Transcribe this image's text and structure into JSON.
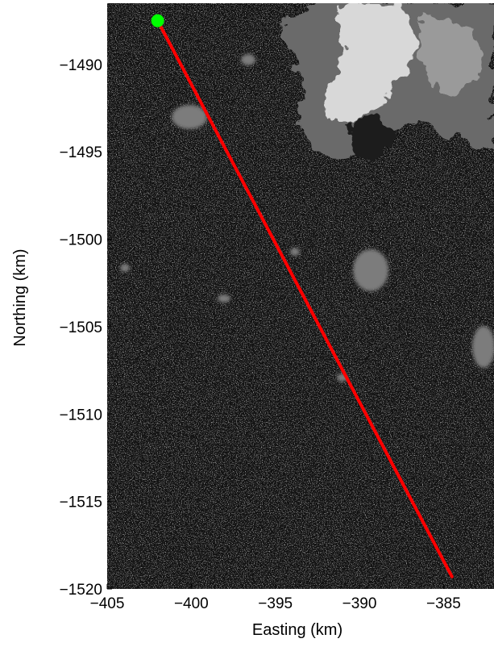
{
  "chart_data": {
    "type": "line",
    "xlabel": "Easting (km)",
    "ylabel": "Northing (km)",
    "xlim": [
      -405,
      -382
    ],
    "ylim": [
      -1520,
      -1486.5
    ],
    "x_ticks": [
      -405,
      -400,
      -395,
      -390,
      -385
    ],
    "y_ticks": [
      -1490,
      -1495,
      -1500,
      -1505,
      -1510,
      -1515,
      -1520
    ],
    "x_tick_labels": [
      "−405",
      "−400",
      "−395",
      "−390",
      "−385"
    ],
    "y_tick_labels": [
      "−1490",
      "−1495",
      "−1500",
      "−1505",
      "−1510",
      "−1515",
      "−1520"
    ],
    "grid": false,
    "background": "satellite imagery (grayscale) of sea ice floes with a larger ice mass at top right",
    "series": [
      {
        "kind": "track",
        "color": "#ff0000",
        "x": [
          -402.0,
          -384.5
        ],
        "y": [
          -1487.5,
          -1519.3
        ]
      },
      {
        "kind": "start-marker",
        "color": "#00ff00",
        "x": [
          -402.0
        ],
        "y": [
          -1487.5
        ]
      }
    ]
  }
}
